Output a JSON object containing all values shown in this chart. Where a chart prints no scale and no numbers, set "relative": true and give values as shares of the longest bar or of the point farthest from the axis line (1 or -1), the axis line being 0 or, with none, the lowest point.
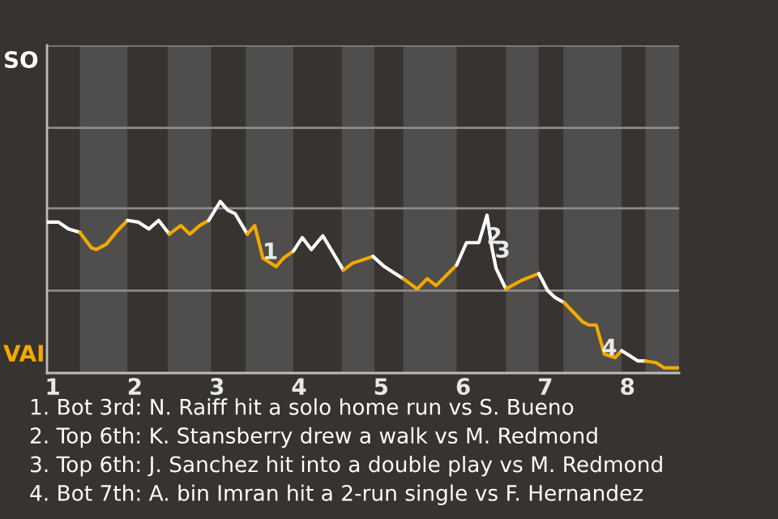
{
  "chart_data": {
    "type": "line",
    "relative": true,
    "xlim": [
      0.93,
      8.63
    ],
    "xticks": [
      1,
      2,
      3,
      4,
      5,
      6,
      7,
      8
    ],
    "tick_labels": "x",
    "ref_lines": [
      {
        "axis": "y",
        "value": 0.48,
        "color": "#8c8b89"
      },
      {
        "axis": "y",
        "value": 0.96,
        "color": "#8c8b89"
      },
      {
        "axis": "y",
        "value": 1.43,
        "color": "#8c8b89"
      },
      {
        "axis": "y",
        "value": 1.91,
        "color": "#8c8b89"
      }
    ],
    "marker": "none",
    "line_style": "solid",
    "series": [
      {
        "color": "#ffffff",
        "x": [
          0.93,
          1.07,
          1.19,
          1.33
        ],
        "values": [
          0.88,
          0.88,
          0.84,
          0.82
        ]
      },
      {
        "color": "#f5a800",
        "x": [
          1.33,
          1.47,
          1.53,
          1.65,
          1.77,
          1.91
        ],
        "values": [
          0.82,
          0.73,
          0.72,
          0.75,
          0.82,
          0.89
        ]
      },
      {
        "color": "#ffffff",
        "x": [
          1.91,
          2.04,
          2.17,
          2.29,
          2.42
        ],
        "values": [
          0.89,
          0.88,
          0.84,
          0.89,
          0.81
        ]
      },
      {
        "color": "#f5a800",
        "x": [
          2.42,
          2.56,
          2.67,
          2.79,
          2.9
        ],
        "values": [
          0.81,
          0.86,
          0.81,
          0.86,
          0.89
        ]
      },
      {
        "color": "#ffffff",
        "x": [
          2.9,
          3.04,
          3.13,
          3.22,
          3.37
        ],
        "values": [
          0.89,
          1,
          0.95,
          0.93,
          0.81
        ]
      },
      {
        "color": "#f5a800",
        "x": [
          3.37,
          3.46,
          3.56,
          3.72,
          3.81,
          3.93
        ],
        "values": [
          0.81,
          0.86,
          0.67,
          0.62,
          0.67,
          0.71
        ]
      },
      {
        "color": "#ffffff",
        "x": [
          3.93,
          4.04,
          4.15,
          4.29,
          4.54
        ],
        "values": [
          0.71,
          0.79,
          0.72,
          0.8,
          0.6
        ]
      },
      {
        "color": "#f5a800",
        "x": [
          4.54,
          4.65,
          4.9
        ],
        "values": [
          0.6,
          0.64,
          0.68
        ]
      },
      {
        "color": "#ffffff",
        "x": [
          4.9,
          5.04,
          5.17,
          5.27
        ],
        "values": [
          0.68,
          0.62,
          0.58,
          0.55
        ]
      },
      {
        "color": "#f5a800",
        "x": [
          5.27,
          5.44,
          5.56,
          5.67,
          5.92
        ],
        "values": [
          0.55,
          0.49,
          0.55,
          0.51,
          0.63
        ]
      },
      {
        "color": "#ffffff",
        "x": [
          5.92,
          6.04,
          6.19,
          6.29,
          6.35,
          6.4,
          6.52
        ],
        "values": [
          0.63,
          0.76,
          0.76,
          0.92,
          0.73,
          0.61,
          0.49
        ]
      },
      {
        "color": "#f5a800",
        "x": [
          6.52,
          6.71,
          6.92
        ],
        "values": [
          0.49,
          0.54,
          0.58
        ]
      },
      {
        "color": "#ffffff",
        "x": [
          6.92,
          7.03,
          7.12,
          7.23
        ],
        "values": [
          0.58,
          0.48,
          0.44,
          0.41
        ]
      },
      {
        "color": "#f5a800",
        "x": [
          7.23,
          7.45,
          7.53,
          7.62,
          7.72,
          7.85,
          7.93
        ],
        "values": [
          0.41,
          0.3,
          0.28,
          0.28,
          0.11,
          0.09,
          0.13
        ]
      },
      {
        "color": "#ffffff",
        "x": [
          7.93,
          8.03,
          8.13,
          8.22
        ],
        "values": [
          0.13,
          0.1,
          0.07,
          0.07
        ]
      },
      {
        "color": "#f5a800",
        "x": [
          8.22,
          8.35,
          8.45,
          8.63
        ],
        "values": [
          0.07,
          0.06,
          0.03,
          0.03
        ]
      }
    ],
    "bands": [
      {
        "axis": "x",
        "from": 1.33,
        "to": 1.91,
        "color": "#4f4e4c"
      },
      {
        "axis": "x",
        "from": 2.4,
        "to": 2.93,
        "color": "#4f4e4c"
      },
      {
        "axis": "x",
        "from": 3.35,
        "to": 3.93,
        "color": "#4f4e4c"
      },
      {
        "axis": "x",
        "from": 4.52,
        "to": 4.92,
        "color": "#4f4e4c"
      },
      {
        "axis": "x",
        "from": 5.27,
        "to": 5.92,
        "color": "#4f4e4c"
      },
      {
        "axis": "x",
        "from": 6.52,
        "to": 6.92,
        "color": "#4f4e4c"
      },
      {
        "axis": "x",
        "from": 7.22,
        "to": 7.93,
        "color": "#4f4e4c"
      },
      {
        "axis": "x",
        "from": 8.22,
        "to": 8.63,
        "color": "#4f4e4c"
      }
    ],
    "annotations": [
      "SO",
      "VAI",
      {
        "text": "1",
        "x": 3.65,
        "y": 0.7
      },
      {
        "text": "2",
        "x": 6.38,
        "y": 0.79
      },
      {
        "text": "3",
        "x": 6.48,
        "y": 0.71
      },
      {
        "text": "4",
        "x": 7.78,
        "y": 0.14
      },
      "1. Bot 3rd: N. Raiff hit a solo home run vs S. Bueno",
      "2. Top 6th: K. Stansberry drew a walk vs M. Redmond",
      "3. Top 6th: J. Sanchez hit into a double play vs M. Redmond",
      "4. Bot 7th: A. bin Imran hit a 2-run single vs F. Hernandez"
    ]
  }
}
